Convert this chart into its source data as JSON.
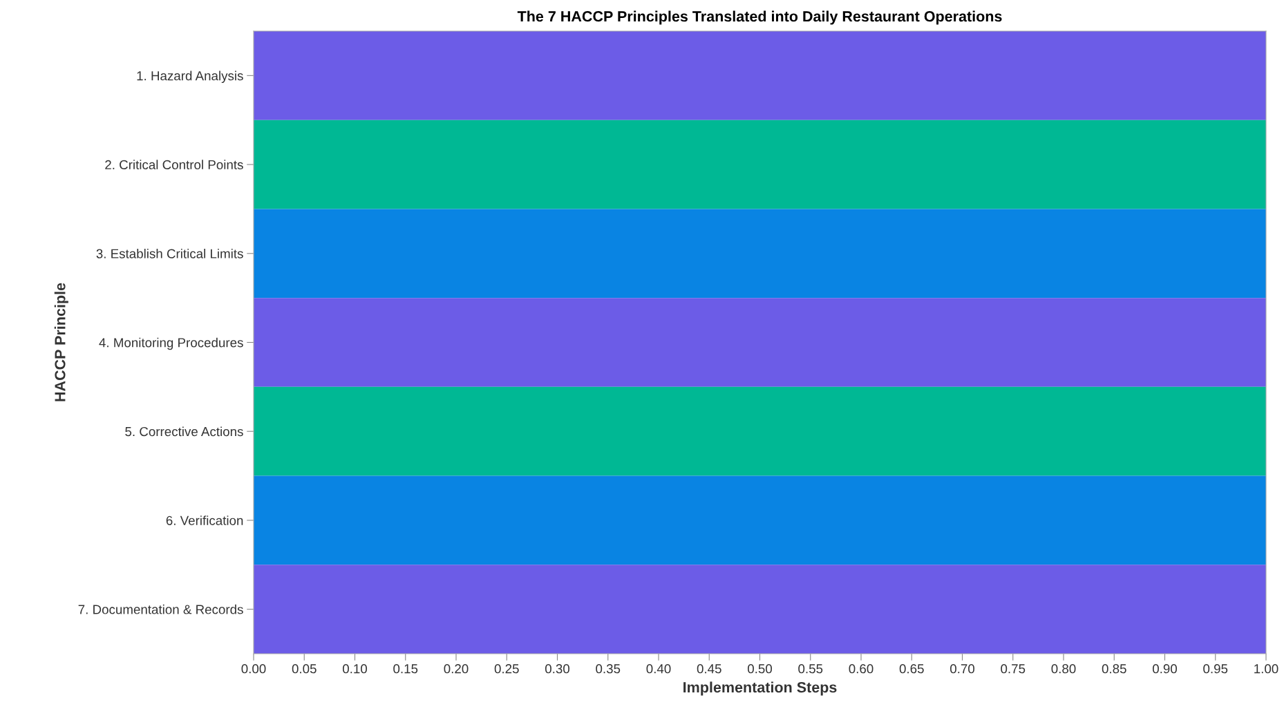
{
  "chart_data": {
    "type": "bar",
    "orientation": "horizontal",
    "title": "The 7 HACCP Principles Translated into Daily Restaurant Operations",
    "xlabel": "Implementation Steps",
    "ylabel": "HACCP Principle",
    "categories": [
      "1. Hazard Analysis",
      "2. Critical Control Points",
      "3. Establish Critical Limits",
      "4. Monitoring Procedures",
      "5. Corrective Actions",
      "6. Verification",
      "7. Documentation & Records"
    ],
    "values": [
      1,
      1,
      1,
      1,
      1,
      1,
      1
    ],
    "colors": [
      "#6c5ce7",
      "#00b894",
      "#0984e3",
      "#6c5ce7",
      "#00b894",
      "#0984e3",
      "#6c5ce7"
    ],
    "xlim": [
      0,
      1
    ],
    "xticks": [
      {
        "value": 0,
        "label": "0.00"
      },
      0.05,
      {
        "value": 0.1,
        "label": "0.10"
      },
      0.15,
      {
        "value": 0.2,
        "label": "0.20"
      },
      0.25,
      {
        "value": 0.3,
        "label": "0.30"
      },
      0.35,
      {
        "value": 0.4,
        "label": "0.40"
      },
      0.45,
      {
        "value": 0.5,
        "label": "0.50"
      },
      0.55,
      {
        "value": 0.6,
        "label": "0.60"
      },
      0.65,
      {
        "value": 0.7,
        "label": "0.70"
      },
      0.75,
      {
        "value": 0.8,
        "label": "0.80"
      },
      0.85,
      {
        "value": 0.9,
        "label": "0.90"
      },
      0.95,
      {
        "value": 1,
        "label": "1.00"
      }
    ],
    "grid": false,
    "legend": false
  }
}
